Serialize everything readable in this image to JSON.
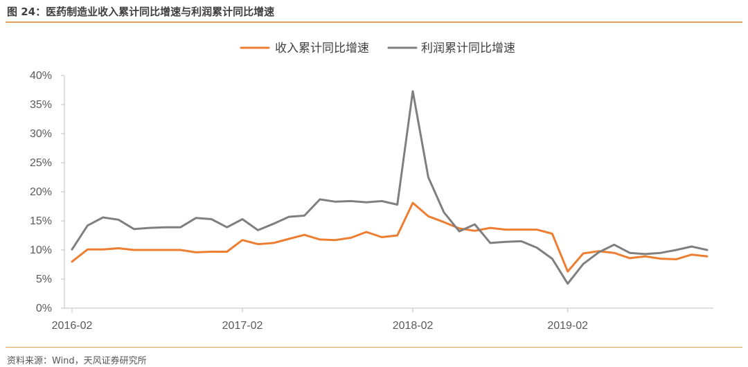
{
  "title": "图 24：医药制造业收入累计同比增速与利润累计同比增速",
  "source": "资料来源：Wind，天风证券研究所",
  "chart_data": {
    "type": "line",
    "x": [
      "2016-02",
      "2016-03",
      "2016-04",
      "2016-05",
      "2016-06",
      "2016-07",
      "2016-08",
      "2016-09",
      "2016-10",
      "2016-11",
      "2016-12",
      "2017-02",
      "2017-03",
      "2017-04",
      "2017-05",
      "2017-06",
      "2017-07",
      "2017-08",
      "2017-09",
      "2017-10",
      "2017-11",
      "2017-12",
      "2018-02",
      "2018-03",
      "2018-04",
      "2018-05",
      "2018-06",
      "2018-07",
      "2018-08",
      "2018-09",
      "2018-10",
      "2018-11",
      "2019-02",
      "2019-03",
      "2019-04",
      "2019-05",
      "2019-06",
      "2019-07",
      "2019-08",
      "2019-09",
      "2019-10",
      "2019-11"
    ],
    "x_tick_labels": [
      "2016-02",
      "2017-02",
      "2018-02",
      "2019-02"
    ],
    "x_tick_indices": [
      0,
      11,
      22,
      32
    ],
    "ylim": [
      0,
      0.4
    ],
    "y_ticks": [
      0,
      0.05,
      0.1,
      0.15,
      0.2,
      0.25,
      0.3,
      0.35,
      0.4
    ],
    "y_tick_labels": [
      "0%",
      "5%",
      "10%",
      "15%",
      "20%",
      "25%",
      "30%",
      "35%",
      "40%"
    ],
    "legend_position": "top-center",
    "grid": false,
    "series": [
      {
        "name": "收入累计同比增速",
        "color": "#ed7d31",
        "values": [
          0.08,
          0.101,
          0.101,
          0.103,
          0.1,
          0.1,
          0.1,
          0.1,
          0.096,
          0.097,
          0.097,
          0.117,
          0.11,
          0.112,
          0.119,
          0.126,
          0.118,
          0.117,
          0.121,
          0.131,
          0.122,
          0.125,
          0.181,
          0.158,
          0.148,
          0.137,
          0.133,
          0.138,
          0.135,
          0.135,
          0.135,
          0.128,
          0.063,
          0.094,
          0.098,
          0.095,
          0.086,
          0.089,
          0.085,
          0.084,
          0.092,
          0.089
        ]
      },
      {
        "name": "利润累计同比增速",
        "color": "#7f7f7f",
        "values": [
          0.101,
          0.142,
          0.156,
          0.152,
          0.136,
          0.138,
          0.139,
          0.139,
          0.155,
          0.153,
          0.139,
          0.153,
          0.134,
          0.145,
          0.157,
          0.159,
          0.187,
          0.183,
          0.184,
          0.182,
          0.184,
          0.178,
          0.373,
          0.225,
          0.165,
          0.132,
          0.144,
          0.112,
          0.114,
          0.115,
          0.104,
          0.085,
          0.042,
          0.076,
          0.096,
          0.109,
          0.095,
          0.093,
          0.095,
          0.1,
          0.106,
          0.1
        ]
      }
    ]
  }
}
